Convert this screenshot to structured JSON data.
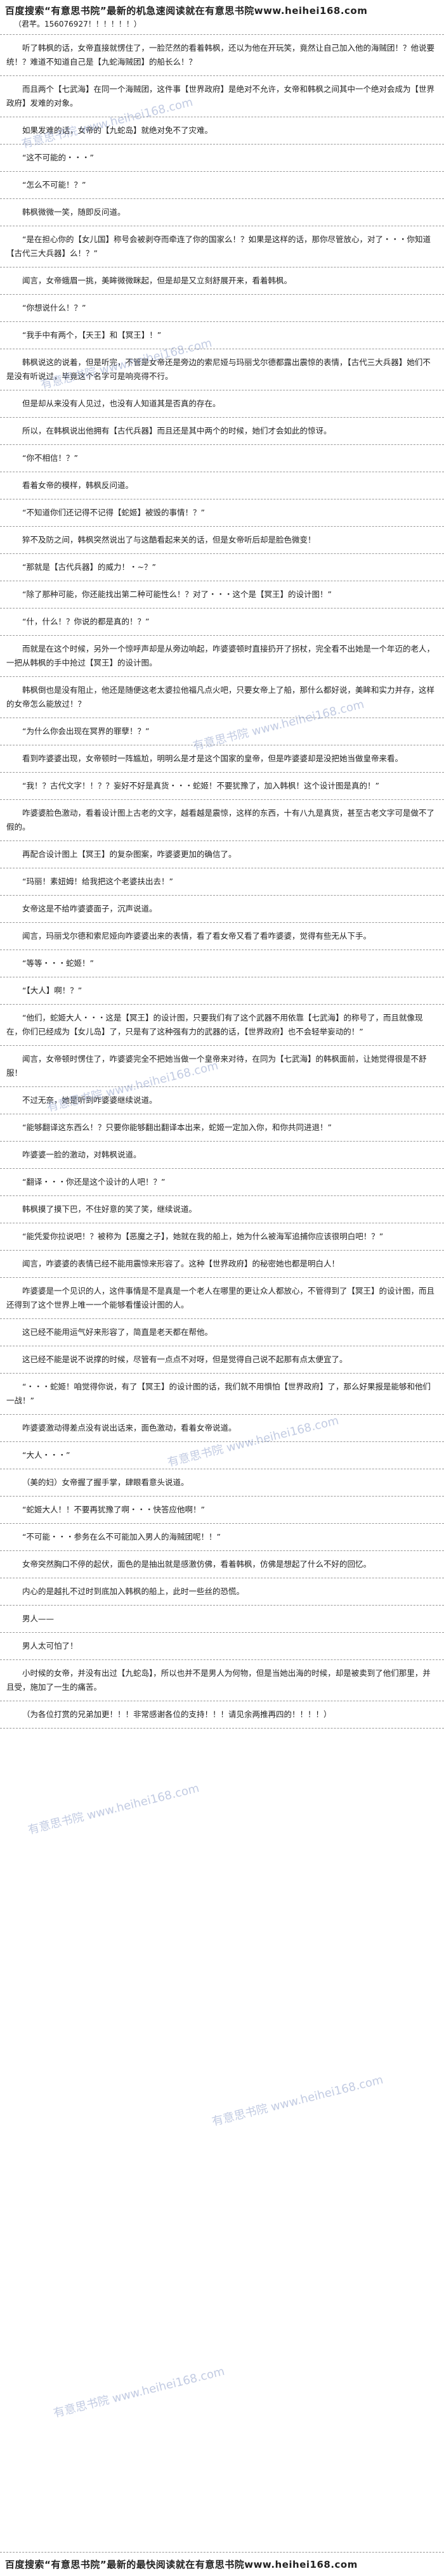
{
  "header": {
    "title": "百度搜索“有意思书院”最新的机急速阅读就在有意思书院www.heihei168.com",
    "note": "（君芊。156076927！！！！！！）"
  },
  "watermark": "有意思书院 www.heihei168.com",
  "paragraphs": [
    "听了韩枫的话，女帝直接就愣住了，一脸茫然的看着韩枫，还以为他在开玩笑，竟然让自己加入他的海贼团！？他说要统！？难道不知道自己是【九蛇海贼团】的船长么！？",
    "而且两个【七武海】在同一个海贼团，这件事【世界政府】是绝对不允许，女帝和韩枫之间其中一个绝对会成为【世界政府】发难的对象。",
    "如果发难的话，女帝的【九蛇岛】就绝对免不了灾难。",
    "“这不可能的・・・”",
    "“怎么不可能！？”",
    "韩枫微微一笑，随即反问道。",
    "“是在担心你的【女儿国】称号会被剥夺而牵连了你的国家么！？如果是这样的话，那你尽管放心，对了・・・你知道【古代三大兵器】么！？”",
    "闻言，女帝蛾眉一挑，美眸微微眯起，但是却是又立刻舒展开来，看着韩枫。",
    "“你想说什么！？”",
    "“我手中有两个，【天王】和【冥王】！”",
    "韩枫说这的说着，但是听完，不管是女帝还是旁边的索尼娅与玛丽戈尔德都露出震惊的表情，【古代三大兵器】她们不是没有听说过，毕竟这个名字可是响亮得不行。",
    "但是却从来没有人见过，也没有人知道其是否真的存在。",
    "所以，在韩枫说出他拥有【古代兵器】而且还是其中两个的时候，她们才会如此的惊讶。",
    "“你不相信！？”",
    "看着女帝的模样，韩枫反问道。",
    "“不知道你们还记得不记得【蛇姬】被毁的事情！？”",
    "猝不及防之间，韩枫突然说出了与这酷看起来关的话，但是女帝听后却是脸色微变！",
    "“那就是【古代兵器】的威力！・~？”",
    "“除了那种可能，你还能找出第二种可能性么！？对了・・・这个是【冥王】的设计图！”",
    "“什，什么！？你说的都是真的！？”",
    "而就是在这个时候，另外一个惊呼声却是从旁边响起，咋婆婆顿时直接扔开了拐杖，完全看不出她是一个年迈的老人，一把从韩枫的手中抢过【冥王】的设计图。",
    "韩枫倒也是没有阻止，他还是随便这老太婆拉他福凡点火吧，只要女帝上了船，那什么都好说，美眸和实力并存，这样的女帝怎么能放过！？",
    "“为什么你会出现在冥界的罪孽！？”",
    "看到咋婆婆出现，女帝顿时一阵尴尬，明明么是才是这个国家的皇帝，但是咋婆婆却是没把她当做皇帝来看。",
    "“我！？古代文字！！？？妄好不好是真货・・・蛇姬！不要犹豫了，加入韩枫！这个设计图是真的！”",
    "咋婆婆脸色激动，看着设计图上古老的文字，越看越是震惊，这样的东西，十有八九是真货，甚至古老文字可是做不了假的。",
    "再配合设计图上【冥王】的复杂图案，咋婆婆更加的确信了。",
    "“玛丽！素妞姆！给我把这个老婆扶出去！”",
    "女帝这是不给咋婆婆面子，沉声说道。",
    "闻言，玛丽戈尔德和索尼娅向咋婆婆出来的表情，看了看女帝又看了看咋婆婆，觉得有些无从下手。",
    "“等等・・・蛇姬！”",
    "“【大人】啊！？”",
    "“他们，蛇姬大人・・・这是【冥王】的设计图，只要我们有了这个武器不用依靠【七武海】的称号了，而且就像现在，你们已经成为【女儿岛】了，只是有了这种强有力的武器的话，【世界政府】也不会轻举妄动的！”",
    "闻言，女帝顿时愣住了，咋婆婆完全不把她当做一个皇帝来对待，在同为【七武海】的韩枫面前，让她觉得很是不舒服！",
    "不过无奈，她是听到咋婆婆继续说道。",
    "“能够翻译这东西么！？只要你能够翻出翻译本出来，蛇姬一定加入你，和你共同进退！”",
    "咋婆婆一脸的激动，对韩枫说道。",
    "“翻译・・・你还是这个设计的人吧！？”",
    "韩枫摸了摸下巴，不住好意的笑了笑，继续说道。",
    "“能凭爱你拉说吧！？被称为【恶魔之子】，她就在我的船上，她为什么被海军追捕你应该很明白吧！？”",
    "闻言，咋婆婆的表情已经不能用震惊来形容了。这种【世界政府】的秘密她也都是明白人！",
    "咋婆婆是一个见识的人，这件事情是不是真是一个老人在哪里的更让众人都放心，不管得到了【冥王】的设计图，而且还得到了这个世界上唯一一个能够看懂设计图的人。",
    "这已经不能用运气好来形容了，简直是老天都在帮他。",
    "这已经不能是说不说撑的时候，尽管有一点点不对呀，但是觉得自己说不起那有点太便宜了。",
    "“・・・蛇姬！咱觉得你说，有了【冥王】的设计图的话，我们就不用惧怕【世界政府】了，那么好果报是能够和他们一战！”",
    "咋婆婆激动得差点没有说出话来，面色激动，看着女帝说道。",
    "“大人・・・”",
    "（美的妇）女帝握了握手掌，肆眼看意头说道。",
    "“蛇姬大人！！不要再犹豫了啊・・・快答应他啊！”",
    "“不可能・・・参务在么不可能加入男人的海贼团呢！！”",
    "女帝突然胸口不停的起伏，面色的是抽出就是感激仿佛，看着韩枫，仿佛是想起了什么不好的回忆。",
    "内心的是越扎不过时到底加入韩枫的船上，此时一些丝的恐慌。",
    "男人——",
    "男人太可怕了！",
    "小时候的女帝，并没有出过【九蛇岛】，所以也并不是男人为何物，但是当她出海的时候，却是被卖到了他们那里，并且受，施加了一生的痛苦。",
    "（为各位打赏的兄弟加更！！！非常感谢各位的支持！！！请见余两推再四的！！！！）"
  ],
  "footer": "百度搜索“有意思书院”最新的最快阅读就在有意思书院www.heihei168.com"
}
